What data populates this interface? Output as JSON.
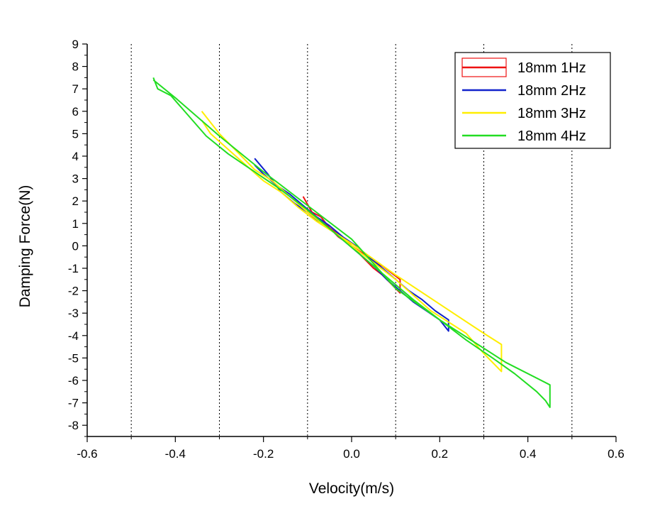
{
  "chart_data": {
    "type": "line",
    "title": "",
    "xlabel": "Velocity(m/s)",
    "ylabel": "Damping Force(N)",
    "xlim": [
      -0.6,
      0.6
    ],
    "ylim": [
      -8.5,
      9
    ],
    "x_ticks": [
      -0.6,
      -0.4,
      -0.2,
      0.0,
      0.2,
      0.4,
      0.6
    ],
    "x_tick_labels": [
      "-0.6",
      "-0.4",
      "-0.2",
      "0.0",
      "0.2",
      "0.4",
      "0.6"
    ],
    "y_ticks": [
      9,
      8,
      7,
      6,
      5,
      4,
      3,
      2,
      1,
      0,
      -1,
      -2,
      -3,
      -4,
      -5,
      -6,
      -7,
      -8
    ],
    "y_tick_labels": [
      "9",
      "8",
      "7",
      "6",
      "5",
      "4",
      "3",
      "2",
      "1",
      "0",
      "-1",
      "-2",
      "-3",
      "-4",
      "-5",
      "-6",
      "-7",
      "-8"
    ],
    "vertical_reference_lines": [
      -0.5,
      -0.3,
      -0.1,
      0.1,
      0.3,
      0.5
    ],
    "legend_position": "top-right",
    "series": [
      {
        "name": "18mm 1Hz",
        "color": "#ee1111",
        "points": [
          [
            -0.11,
            2.2
          ],
          [
            -0.09,
            1.5
          ],
          [
            -0.07,
            1.3
          ],
          [
            -0.05,
            0.8
          ],
          [
            -0.03,
            0.5
          ],
          [
            -0.01,
            0.2
          ],
          [
            0.01,
            -0.2
          ],
          [
            0.03,
            -0.6
          ],
          [
            0.05,
            -1.0
          ],
          [
            0.07,
            -1.3
          ],
          [
            0.09,
            -1.7
          ],
          [
            0.11,
            -2.1
          ],
          [
            0.11,
            -1.5
          ],
          [
            0.09,
            -1.2
          ],
          [
            0.07,
            -0.9
          ],
          [
            0.05,
            -0.7
          ],
          [
            0.03,
            -0.4
          ],
          [
            0.0,
            0.0
          ],
          [
            -0.03,
            0.4
          ],
          [
            -0.05,
            0.8
          ],
          [
            -0.07,
            1.1
          ],
          [
            -0.09,
            1.4
          ],
          [
            -0.11,
            1.8
          ]
        ]
      },
      {
        "name": "18mm 2Hz",
        "color": "#1122cc",
        "points": [
          [
            -0.22,
            3.9
          ],
          [
            -0.19,
            3.2
          ],
          [
            -0.16,
            2.4
          ],
          [
            -0.13,
            1.9
          ],
          [
            -0.1,
            1.5
          ],
          [
            -0.07,
            1.0
          ],
          [
            -0.04,
            0.6
          ],
          [
            -0.01,
            0.1
          ],
          [
            0.02,
            -0.4
          ],
          [
            0.05,
            -0.9
          ],
          [
            0.08,
            -1.5
          ],
          [
            0.11,
            -2.0
          ],
          [
            0.14,
            -2.5
          ],
          [
            0.17,
            -2.9
          ],
          [
            0.2,
            -3.3
          ],
          [
            0.22,
            -3.8
          ],
          [
            0.22,
            -3.3
          ],
          [
            0.19,
            -2.9
          ],
          [
            0.16,
            -2.4
          ],
          [
            0.13,
            -2.0
          ],
          [
            0.1,
            -1.5
          ],
          [
            0.07,
            -1.0
          ],
          [
            0.04,
            -0.5
          ],
          [
            0.01,
            0.0
          ],
          [
            -0.02,
            0.4
          ],
          [
            -0.05,
            0.9
          ],
          [
            -0.08,
            1.3
          ],
          [
            -0.11,
            1.8
          ],
          [
            -0.14,
            2.3
          ],
          [
            -0.17,
            2.7
          ],
          [
            -0.2,
            3.2
          ],
          [
            -0.22,
            3.6
          ]
        ]
      },
      {
        "name": "18mm 3Hz",
        "color": "#ffee00",
        "points": [
          [
            -0.34,
            6.0
          ],
          [
            -0.3,
            5.0
          ],
          [
            -0.26,
            4.2
          ],
          [
            -0.22,
            3.4
          ],
          [
            -0.18,
            2.9
          ],
          [
            -0.14,
            2.2
          ],
          [
            -0.1,
            1.5
          ],
          [
            -0.06,
            0.9
          ],
          [
            -0.02,
            0.3
          ],
          [
            0.02,
            -0.3
          ],
          [
            0.06,
            -0.9
          ],
          [
            0.1,
            -1.5
          ],
          [
            0.14,
            -2.2
          ],
          [
            0.18,
            -2.9
          ],
          [
            0.22,
            -3.4
          ],
          [
            0.26,
            -3.9
          ],
          [
            0.3,
            -4.8
          ],
          [
            0.34,
            -5.6
          ],
          [
            0.34,
            -4.4
          ],
          [
            0.3,
            -3.9
          ],
          [
            0.2,
            -2.6
          ],
          [
            0.1,
            -1.3
          ],
          [
            0.0,
            0.1
          ],
          [
            -0.04,
            0.6
          ],
          [
            -0.08,
            1.1
          ],
          [
            -0.12,
            1.7
          ],
          [
            -0.16,
            2.4
          ],
          [
            -0.2,
            2.9
          ],
          [
            -0.24,
            3.6
          ],
          [
            -0.28,
            4.3
          ],
          [
            -0.32,
            5.0
          ],
          [
            -0.34,
            5.6
          ]
        ]
      },
      {
        "name": "18mm 4Hz",
        "color": "#22dd22",
        "points": [
          [
            -0.45,
            7.5
          ],
          [
            -0.44,
            7.0
          ],
          [
            -0.41,
            6.7
          ],
          [
            -0.37,
            5.8
          ],
          [
            -0.33,
            4.9
          ],
          [
            -0.28,
            4.1
          ],
          [
            -0.22,
            3.3
          ],
          [
            -0.16,
            2.5
          ],
          [
            -0.1,
            1.6
          ],
          [
            -0.04,
            0.6
          ],
          [
            0.02,
            -0.4
          ],
          [
            0.08,
            -1.4
          ],
          [
            0.14,
            -2.4
          ],
          [
            0.2,
            -3.3
          ],
          [
            0.26,
            -4.2
          ],
          [
            0.32,
            -5.0
          ],
          [
            0.37,
            -5.7
          ],
          [
            0.42,
            -6.5
          ],
          [
            0.44,
            -6.9
          ],
          [
            0.45,
            -7.2
          ],
          [
            0.45,
            -6.2
          ],
          [
            0.35,
            -5.2
          ],
          [
            0.2,
            -3.3
          ],
          [
            0.1,
            -1.9
          ],
          [
            0.0,
            0.3
          ],
          [
            0.0,
            0.3
          ],
          [
            -0.1,
            1.8
          ],
          [
            -0.2,
            3.3
          ],
          [
            -0.3,
            4.9
          ],
          [
            -0.4,
            6.6
          ],
          [
            -0.45,
            7.4
          ]
        ]
      }
    ]
  }
}
